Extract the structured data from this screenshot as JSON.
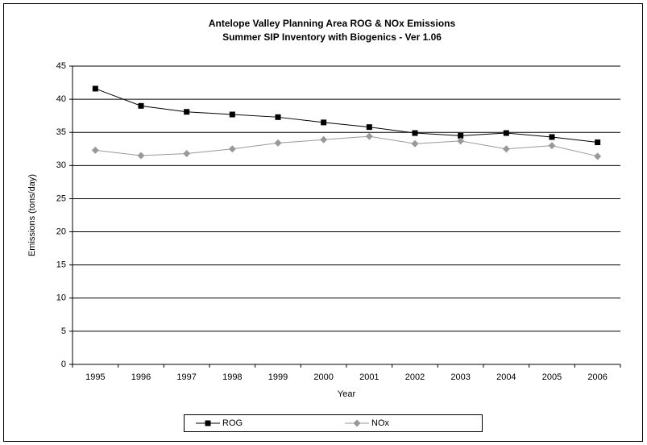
{
  "chart_data": {
    "type": "line",
    "title": "Antelope Valley Planning Area ROG & NOx Emissions",
    "subtitle": "Summer SIP Inventory with Biogenics - Ver 1.06",
    "x_label": "Year",
    "y_label": "Emissions (tons/day)",
    "categories": [
      "1995",
      "1996",
      "1997",
      "1998",
      "1999",
      "2000",
      "2001",
      "2002",
      "2003",
      "2004",
      "2005",
      "2006"
    ],
    "series": [
      {
        "name": "ROG",
        "color": "#000000",
        "marker": "square",
        "values": [
          41.6,
          39.0,
          38.1,
          37.7,
          37.3,
          36.5,
          35.8,
          34.9,
          34.5,
          34.9,
          34.3,
          33.5
        ]
      },
      {
        "name": "NOx",
        "color": "#999999",
        "marker": "diamond",
        "values": [
          32.3,
          31.5,
          31.8,
          32.5,
          33.4,
          33.9,
          34.4,
          33.3,
          33.7,
          32.5,
          33.0,
          31.4
        ]
      }
    ],
    "ylim": [
      0,
      45
    ],
    "yticks": [
      0,
      5,
      10,
      15,
      20,
      25,
      30,
      35,
      40,
      45
    ],
    "grid": true,
    "legend": "bottom"
  }
}
